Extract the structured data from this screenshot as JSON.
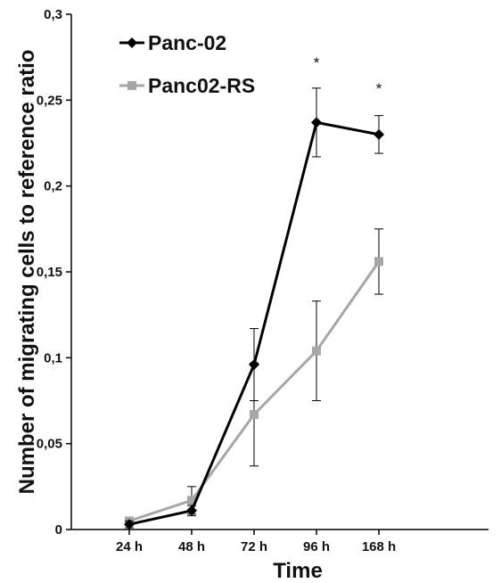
{
  "chart_data": {
    "type": "line",
    "xlabel": "Time",
    "ylabel": "Number of migrating cells to reference ratio",
    "categories": [
      "24 h",
      "48 h",
      "72 h",
      "96 h",
      "168 h"
    ],
    "ylim": [
      0,
      0.3
    ],
    "yticks": [
      0,
      0.05,
      0.1,
      0.15,
      0.2,
      0.25,
      0.3
    ],
    "ytick_labels": [
      "0",
      "0,05",
      "0,1",
      "0,15",
      "0,2",
      "0,25",
      "0,3"
    ],
    "grid": false,
    "legend_position": "top-left",
    "series": [
      {
        "name": "Panc-02",
        "color": "#000000",
        "marker": "diamond",
        "values": [
          0.003,
          0.011,
          0.096,
          0.237,
          0.23
        ],
        "errors": [
          0.002,
          0.003,
          0.021,
          0.02,
          0.011
        ]
      },
      {
        "name": "Panc02-RS",
        "color": "#a6a6a6",
        "marker": "square",
        "values": [
          0.005,
          0.017,
          0.067,
          0.104,
          0.156
        ],
        "errors": [
          0.002,
          0.008,
          0.03,
          0.029,
          0.019
        ]
      }
    ],
    "annotations": [
      {
        "category": "96 h",
        "text": "*",
        "value": 0.272
      },
      {
        "category": "168 h",
        "text": "*",
        "value": 0.257
      }
    ]
  }
}
